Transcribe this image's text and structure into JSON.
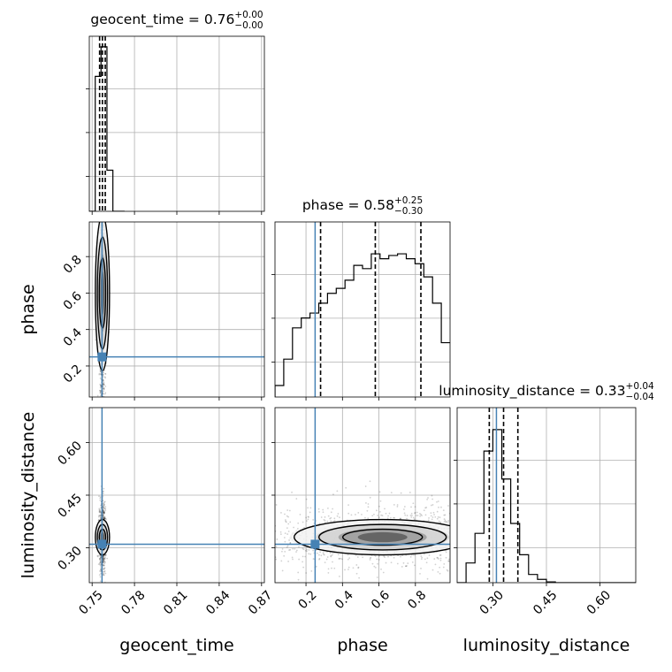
{
  "chart_data": {
    "type": "corner",
    "parameters": [
      "geocent_time",
      "phase",
      "luminosity_distance"
    ],
    "truths": {
      "geocent_time": 0.757,
      "phase": 0.25,
      "luminosity_distance": 0.31
    },
    "truth_color": "#4682b4",
    "colors": {
      "hist": "#000000",
      "grid": "#b0b0b0",
      "truth": "#4682b4"
    },
    "grid": true,
    "titles": {
      "geocent_time": {
        "label": "geocent_time = 0.76",
        "plus": "+0.00",
        "minus": "−0.00"
      },
      "phase": {
        "label": "phase = 0.58",
        "plus": "+0.25",
        "minus": "−0.30"
      },
      "luminosity_distance": {
        "label": "luminosity_distance = 0.33",
        "plus": "+0.04",
        "minus": "−0.04"
      }
    },
    "axis_labels": {
      "geocent_time": "geocent_time",
      "phase": "phase",
      "luminosity_distance": "luminosity_distance"
    },
    "ranges": {
      "geocent_time": [
        0.748,
        0.872
      ],
      "phase": [
        0.03,
        0.99
      ],
      "luminosity_distance": [
        0.2,
        0.7
      ]
    },
    "ticks": {
      "geocent_time": {
        "values": [
          0.75,
          0.78,
          0.81,
          0.84,
          0.87
        ],
        "labels": [
          "0.75",
          "0.78",
          "0.81",
          "0.84",
          "0.87"
        ]
      },
      "phase": {
        "values": [
          0.2,
          0.4,
          0.6,
          0.8
        ],
        "labels": [
          "0.2",
          "0.4",
          "0.6",
          "0.8"
        ]
      },
      "luminosity_distance": {
        "values": [
          0.3,
          0.45,
          0.6
        ],
        "labels": [
          "0.30",
          "0.45",
          "0.60"
        ]
      }
    },
    "histograms": {
      "geocent_time": {
        "bin_edges": [
          0.748,
          0.7522,
          0.7563,
          0.7605,
          0.7647,
          0.7688,
          0.773
        ],
        "counts": [
          0.0,
          0.82,
          1.0,
          0.25,
          0.0,
          0.0
        ],
        "quantiles": [
          0.7553,
          0.7573,
          0.7593
        ]
      },
      "phase": {
        "bin_edges": [
          0.03,
          0.078,
          0.126,
          0.174,
          0.222,
          0.27,
          0.318,
          0.366,
          0.414,
          0.462,
          0.51,
          0.558,
          0.606,
          0.654,
          0.702,
          0.75,
          0.798,
          0.846,
          0.894,
          0.942,
          0.99
        ],
        "counts": [
          0.07,
          0.23,
          0.42,
          0.48,
          0.51,
          0.57,
          0.63,
          0.66,
          0.71,
          0.8,
          0.78,
          0.87,
          0.84,
          0.86,
          0.87,
          0.84,
          0.81,
          0.73,
          0.57,
          0.33
        ],
        "quantiles": [
          0.28,
          0.58,
          0.83
        ]
      },
      "luminosity_distance": {
        "bin_edges": [
          0.2,
          0.225,
          0.25,
          0.275,
          0.3,
          0.325,
          0.35,
          0.375,
          0.4,
          0.425,
          0.45,
          0.475,
          0.5,
          0.525,
          0.55,
          0.575,
          0.6,
          0.625,
          0.65,
          0.675,
          0.7
        ],
        "counts": [
          0.0,
          0.12,
          0.3,
          0.8,
          0.93,
          0.63,
          0.36,
          0.17,
          0.05,
          0.02,
          0.005,
          0.0,
          0.0,
          0.0,
          0.0,
          0.0,
          0.0,
          0.0,
          0.0,
          0.0
        ],
        "quantiles": [
          0.29,
          0.33,
          0.37
        ]
      }
    }
  }
}
